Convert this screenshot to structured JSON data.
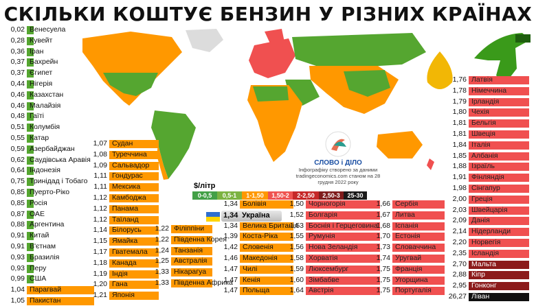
{
  "title": "СКІЛЬКИ КОШТУЄ БЕНЗИН У РІЗНИХ КРАЇНАХ",
  "unit_label": "$/літр",
  "legend": [
    {
      "label": "0-0,5",
      "color": "#43a047"
    },
    {
      "label": "0,5-1",
      "color": "#7cb342"
    },
    {
      "label": "1-1,50",
      "color": "#ff9800"
    },
    {
      "label": "1,50-2",
      "color": "#ef5350"
    },
    {
      "label": "2-2,50",
      "color": "#c62828"
    },
    {
      "label": "2,50-3",
      "color": "#7f1d1d"
    },
    {
      "label": "25-30",
      "color": "#1a1a1a"
    }
  ],
  "colors": {
    "green": "#55a630",
    "orange": "#ff9800",
    "red": "#f05050",
    "darkred": "#8b1a1a",
    "black": "#111111"
  },
  "logo": {
    "brand": "СЛОВО і ДІЛО",
    "caption": "Інфографіку створено за даними tradingeconomics.com станом на 28 грудня 2022 року"
  },
  "ukraine": {
    "value": "1,34",
    "name": "Україна"
  },
  "columns": [
    {
      "rows": [
        {
          "v": "0,02",
          "c": "Венесуела",
          "k": "green"
        },
        {
          "v": "0,28",
          "c": "Кувейт",
          "k": "green"
        },
        {
          "v": "0,36",
          "c": "Іран",
          "k": "green"
        },
        {
          "v": "0,37",
          "c": "Бахрейн",
          "k": "green"
        },
        {
          "v": "0,37",
          "c": "Єгипет",
          "k": "green"
        },
        {
          "v": "0,44",
          "c": "Нігерія",
          "k": "green"
        },
        {
          "v": "0,46",
          "c": "Казахстан",
          "k": "green"
        },
        {
          "v": "0,46",
          "c": "Малайзія",
          "k": "green"
        },
        {
          "v": "0,48",
          "c": "Гаїті",
          "k": "green"
        },
        {
          "v": "0,51",
          "c": "Колумбія",
          "k": "green"
        },
        {
          "v": "0,55",
          "c": "Катар",
          "k": "green"
        },
        {
          "v": "0,59",
          "c": "Азербайджан",
          "k": "green"
        },
        {
          "v": "0,62",
          "c": "Саудівська Аравія",
          "k": "green"
        },
        {
          "v": "0,64",
          "c": "Індонезія",
          "k": "green"
        },
        {
          "v": "0,75",
          "c": "Тринідад і Тобаго",
          "k": "green"
        },
        {
          "v": "0,85",
          "c": "Пуерто-Ріко",
          "k": "green"
        },
        {
          "v": "0,85",
          "c": "Росія",
          "k": "green"
        },
        {
          "v": "0,87",
          "c": "ОАЕ",
          "k": "green"
        },
        {
          "v": "0,88",
          "c": "Аргентина",
          "k": "green"
        },
        {
          "v": "0,91",
          "c": "Китай",
          "k": "green"
        },
        {
          "v": "0,91",
          "c": "В'єтнам",
          "k": "green"
        },
        {
          "v": "0,93",
          "c": "Бразилія",
          "k": "green"
        },
        {
          "v": "0,93",
          "c": "Перу",
          "k": "green"
        },
        {
          "v": "0,99",
          "c": "США",
          "k": "green"
        },
        {
          "v": "1,04",
          "c": "Парагвай",
          "k": "orange"
        },
        {
          "v": "1,05",
          "c": "Пакистан",
          "k": "orange"
        }
      ]
    },
    {
      "rows": [
        {
          "v": "1,07",
          "c": "Судан",
          "k": "orange"
        },
        {
          "v": "1,08",
          "c": "Туреччина",
          "k": "orange"
        },
        {
          "v": "1,09",
          "c": "Сальвадор",
          "k": "orange"
        },
        {
          "v": "1,11",
          "c": "Гондурас",
          "k": "orange"
        },
        {
          "v": "1,11",
          "c": "Мексика",
          "k": "orange"
        },
        {
          "v": "1,12",
          "c": "Камбоджа",
          "k": "orange"
        },
        {
          "v": "1,12",
          "c": "Панама",
          "k": "orange"
        },
        {
          "v": "1,12",
          "c": "Таїланд",
          "k": "orange"
        },
        {
          "v": "1,14",
          "c": "Білорусь",
          "k": "orange"
        },
        {
          "v": "1,15",
          "c": "Ямайка",
          "k": "orange"
        },
        {
          "v": "1,17",
          "c": "Гватемала",
          "k": "orange"
        },
        {
          "v": "1,18",
          "c": "Канада",
          "k": "orange"
        },
        {
          "v": "1,19",
          "c": "Індія",
          "k": "orange"
        },
        {
          "v": "1,20",
          "c": "Гана",
          "k": "orange"
        },
        {
          "v": "1,21",
          "c": "Японія",
          "k": "orange"
        }
      ]
    },
    {
      "rows": [
        {
          "v": "1,22",
          "c": "Філіппіни",
          "k": "orange"
        },
        {
          "v": "1,22",
          "c": "Південна Корея",
          "k": "orange"
        },
        {
          "v": "1,24",
          "c": "Танзанія",
          "k": "orange"
        },
        {
          "v": "1,25",
          "c": "Австралія",
          "k": "orange"
        },
        {
          "v": "1,33",
          "c": "Нікарагуа",
          "k": "orange"
        },
        {
          "v": "1,33",
          "c": "Південна Африка",
          "k": "orange"
        }
      ]
    },
    {
      "rows": [
        {
          "v": "1,34",
          "c": "Болівія",
          "k": "orange"
        },
        {
          "v": "1,34",
          "c": "Велика Британія",
          "k": "orange"
        },
        {
          "v": "1,39",
          "c": "Коста-Ріка",
          "k": "orange"
        },
        {
          "v": "1,42",
          "c": "Словенія",
          "k": "orange"
        },
        {
          "v": "1,46",
          "c": "Македонія",
          "k": "orange"
        },
        {
          "v": "1,47",
          "c": "Чилі",
          "k": "orange"
        },
        {
          "v": "1,47",
          "c": "Кенія",
          "k": "orange"
        },
        {
          "v": "1,47",
          "c": "Польща",
          "k": "orange"
        }
      ]
    },
    {
      "rows": [
        {
          "v": "1,50",
          "c": "Чорногорія",
          "k": "red"
        },
        {
          "v": "1,52",
          "c": "Болгарія",
          "k": "red"
        },
        {
          "v": "1,53",
          "c": "Боснія і Герцеговина",
          "k": "red"
        },
        {
          "v": "1,55",
          "c": "Румунія",
          "k": "red"
        },
        {
          "v": "1,56",
          "c": "Нова Зеландія",
          "k": "red"
        },
        {
          "v": "1,58",
          "c": "Хорватія",
          "k": "red"
        },
        {
          "v": "1,59",
          "c": "Люксембург",
          "k": "red"
        },
        {
          "v": "1,60",
          "c": "Зімбабве",
          "k": "red"
        },
        {
          "v": "1,64",
          "c": "Австрія",
          "k": "red"
        }
      ]
    },
    {
      "rows": [
        {
          "v": "1,66",
          "c": "Сербія",
          "k": "red"
        },
        {
          "v": "1,67",
          "c": "Литва",
          "k": "red"
        },
        {
          "v": "1,68",
          "c": "Іспанія",
          "k": "red"
        },
        {
          "v": "1,70",
          "c": "Естонія",
          "k": "red"
        },
        {
          "v": "1,73",
          "c": "Словаччина",
          "k": "red"
        },
        {
          "v": "1,74",
          "c": "Уругвай",
          "k": "red"
        },
        {
          "v": "1,75",
          "c": "Франція",
          "k": "red"
        },
        {
          "v": "1,75",
          "c": "Угорщина",
          "k": "red"
        },
        {
          "v": "1,75",
          "c": "Португалія",
          "k": "red"
        }
      ]
    },
    {
      "rows": [
        {
          "v": "1,76",
          "c": "Латвія",
          "k": "red"
        },
        {
          "v": "1,78",
          "c": "Німеччина",
          "k": "red"
        },
        {
          "v": "1,79",
          "c": "Ірландія",
          "k": "red"
        },
        {
          "v": "1,80",
          "c": "Чехія",
          "k": "red"
        },
        {
          "v": "1,81",
          "c": "Бельгія",
          "k": "red"
        },
        {
          "v": "1,81",
          "c": "Швеція",
          "k": "red"
        },
        {
          "v": "1,84",
          "c": "Італія",
          "k": "red"
        },
        {
          "v": "1,85",
          "c": "Албанія",
          "k": "red"
        },
        {
          "v": "1,88",
          "c": "Ізраїль",
          "k": "red"
        },
        {
          "v": "1,91",
          "c": "Фінляндія",
          "k": "red"
        },
        {
          "v": "1,98",
          "c": "Сінгапур",
          "k": "red"
        },
        {
          "v": "2,00",
          "c": "Греція",
          "k": "red"
        },
        {
          "v": "2,03",
          "c": "Швейцарія",
          "k": "red"
        },
        {
          "v": "2,09",
          "c": "Данія",
          "k": "red"
        },
        {
          "v": "2,14",
          "c": "Нідерланди",
          "k": "red"
        },
        {
          "v": "2,20",
          "c": "Норвегія",
          "k": "red"
        },
        {
          "v": "2,35",
          "c": "Ісландія",
          "k": "red"
        },
        {
          "v": "2,70",
          "c": "Мальта",
          "k": "darkred"
        },
        {
          "v": "2,88",
          "c": "Кіпр",
          "k": "darkred"
        },
        {
          "v": "2,95",
          "c": "Гонконг",
          "k": "darkred"
        },
        {
          "v": "26,27",
          "c": "Ліван",
          "k": "black"
        }
      ]
    }
  ]
}
